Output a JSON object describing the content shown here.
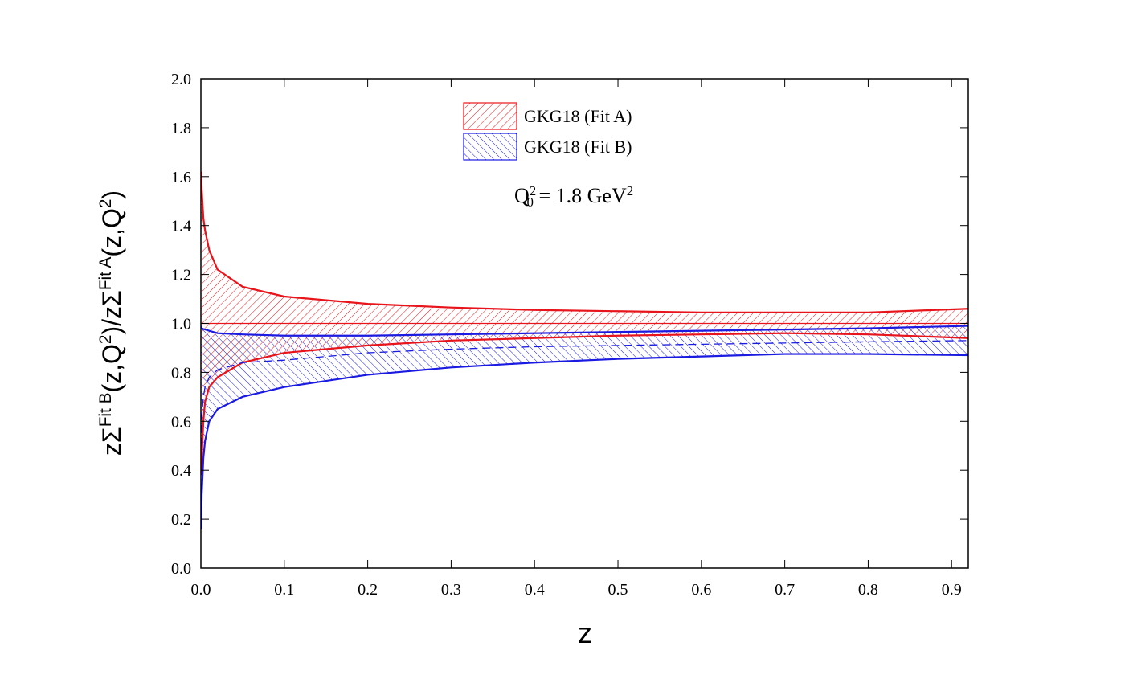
{
  "chart_data": {
    "type": "band",
    "ylabel": [
      {
        "t": "zΣ"
      },
      {
        "t": "Fit B",
        "pos": "sup"
      },
      {
        "t": "(z,Q"
      },
      {
        "t": "2",
        "pos": "sup"
      },
      {
        "t": ")/zΣ"
      },
      {
        "t": "Fit A",
        "pos": "sup"
      },
      {
        "t": "(z,Q"
      },
      {
        "t": "2",
        "pos": "sup"
      },
      {
        "t": ")"
      }
    ],
    "xlabel": "z",
    "annotation": [
      {
        "t": "Q"
      },
      {
        "t": "2",
        "pos": "subsup"
      },
      {
        "t": "0",
        "pos": "sub"
      },
      {
        "t": " = 1.8 GeV"
      },
      {
        "t": "2",
        "pos": "sup"
      }
    ],
    "x": [
      0.0005,
      0.001,
      0.003,
      0.005,
      0.01,
      0.02,
      0.05,
      0.1,
      0.2,
      0.3,
      0.4,
      0.5,
      0.6,
      0.7,
      0.8,
      0.92
    ],
    "series": [
      {
        "name": "GKG18 (Fit A)",
        "color": "#e8141b",
        "hatch": "forward",
        "dashed": false,
        "upper": [
          1.62,
          1.55,
          1.43,
          1.38,
          1.3,
          1.22,
          1.15,
          1.11,
          1.08,
          1.065,
          1.055,
          1.05,
          1.045,
          1.045,
          1.045,
          1.06
        ],
        "center": [
          1.0,
          1.0,
          1.0,
          1.0,
          1.0,
          1.0,
          1.0,
          1.0,
          1.0,
          1.0,
          1.0,
          1.0,
          1.0,
          1.0,
          1.0,
          1.0
        ],
        "lower": [
          0.38,
          0.45,
          0.6,
          0.68,
          0.74,
          0.78,
          0.84,
          0.88,
          0.91,
          0.93,
          0.94,
          0.95,
          0.955,
          0.96,
          0.955,
          0.94
        ]
      },
      {
        "name": "GKG18 (Fit B)",
        "color": "#1a1ae0",
        "hatch": "backward",
        "dashed": true,
        "upper": [
          0.99,
          0.98,
          0.977,
          0.975,
          0.97,
          0.96,
          0.955,
          0.95,
          0.95,
          0.955,
          0.96,
          0.965,
          0.97,
          0.975,
          0.98,
          0.99
        ],
        "center": [
          0.5,
          0.62,
          0.7,
          0.74,
          0.78,
          0.81,
          0.84,
          0.85,
          0.88,
          0.895,
          0.905,
          0.91,
          0.915,
          0.92,
          0.925,
          0.93
        ],
        "lower": [
          0.16,
          0.3,
          0.45,
          0.52,
          0.6,
          0.65,
          0.7,
          0.74,
          0.79,
          0.82,
          0.84,
          0.855,
          0.865,
          0.875,
          0.875,
          0.87
        ]
      }
    ],
    "xlim": [
      0,
      0.92
    ],
    "ylim": [
      0,
      2
    ],
    "xticks": [
      {
        "value": 0,
        "label": "0.0"
      },
      0.1,
      0.2,
      0.3,
      0.4,
      0.5,
      0.6,
      0.7,
      0.8,
      0.9
    ],
    "yticks": [
      {
        "value": 0,
        "label": "0.0"
      },
      0.2,
      0.4,
      0.6,
      0.8,
      {
        "value": 1,
        "label": "1.0"
      },
      1.2,
      1.4,
      1.6,
      1.8,
      {
        "value": 2,
        "label": "2.0"
      }
    ]
  }
}
